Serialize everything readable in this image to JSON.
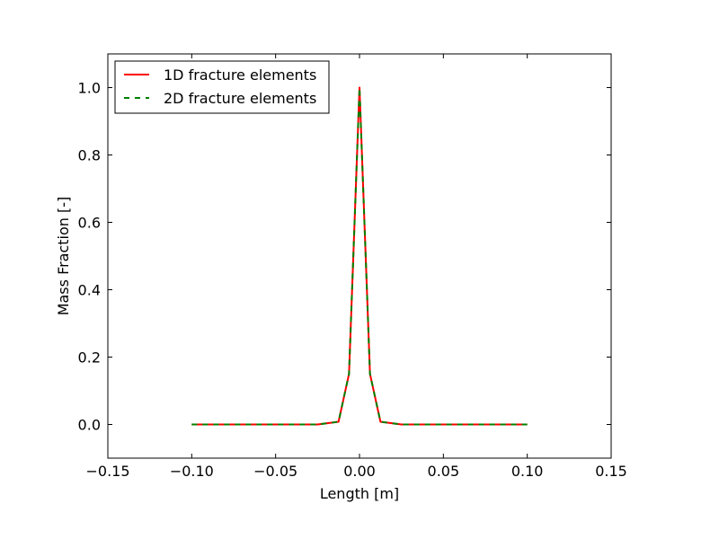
{
  "chart_data": {
    "type": "line",
    "title": "",
    "xlabel": "Length [m]",
    "ylabel": "Mass Fraction [-]",
    "xlim": [
      -0.15,
      0.15
    ],
    "ylim": [
      -0.1,
      1.1
    ],
    "xticks": [
      -0.15,
      -0.1,
      -0.05,
      0.0,
      0.05,
      0.1,
      0.15
    ],
    "xtick_labels": [
      "−0.15",
      "−0.10",
      "−0.05",
      "0.00",
      "0.05",
      "0.10",
      "0.15"
    ],
    "yticks": [
      0.0,
      0.2,
      0.4,
      0.6,
      0.8,
      1.0
    ],
    "ytick_labels": [
      "0.0",
      "0.2",
      "0.4",
      "0.6",
      "0.8",
      "1.0"
    ],
    "grid": false,
    "legend_position": "top-left",
    "series": [
      {
        "name": "1D fracture elements",
        "color": "#ff0000",
        "style": "solid",
        "x": [
          -0.1,
          -0.075,
          -0.05,
          -0.025,
          -0.0125,
          -0.00625,
          0.0,
          0.00625,
          0.0125,
          0.025,
          0.05,
          0.075,
          0.1
        ],
        "y": [
          0.0,
          0.0,
          0.0,
          0.0,
          0.008,
          0.15,
          1.0,
          0.15,
          0.008,
          0.0,
          0.0,
          0.0,
          0.0
        ]
      },
      {
        "name": "2D fracture elements",
        "color": "#008000",
        "style": "dashed",
        "x": [
          -0.1,
          -0.075,
          -0.05,
          -0.025,
          -0.0125,
          -0.00625,
          0.0,
          0.00625,
          0.0125,
          0.025,
          0.05,
          0.075,
          0.1
        ],
        "y": [
          0.0,
          0.0,
          0.0,
          0.0,
          0.008,
          0.15,
          1.0,
          0.15,
          0.008,
          0.0,
          0.0,
          0.0,
          0.0
        ]
      }
    ]
  }
}
